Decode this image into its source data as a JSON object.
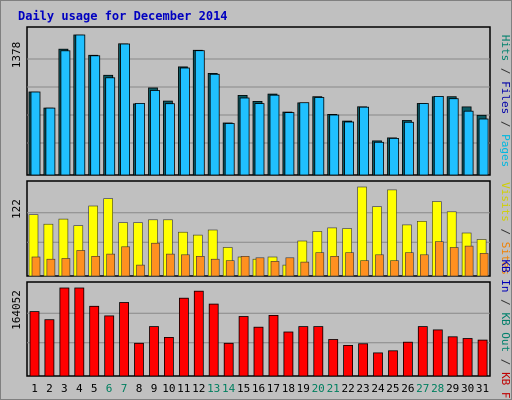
{
  "chart_data": {
    "type": "bar",
    "title": "Daily usage for December 2014",
    "categories": [
      "1",
      "2",
      "3",
      "4",
      "5",
      "6",
      "7",
      "8",
      "9",
      "10",
      "11",
      "12",
      "13",
      "14",
      "15",
      "16",
      "17",
      "18",
      "19",
      "20",
      "21",
      "22",
      "23",
      "24",
      "25",
      "26",
      "27",
      "28",
      "29",
      "30",
      "31"
    ],
    "weekend_days": [
      "6",
      "7",
      "13",
      "14",
      "20",
      "21",
      "27",
      "28"
    ],
    "panels": [
      {
        "name": "top",
        "ymax_label": "1378",
        "ymax": 1378,
        "right_labels": [
          {
            "text": "Hits",
            "color": "#00806c"
          },
          {
            "text": " / ",
            "color": "#333333"
          },
          {
            "text": "Files",
            "color": "#0000a8"
          },
          {
            "text": " / ",
            "color": "#333333"
          },
          {
            "text": "Pages",
            "color": "#00b8e0"
          }
        ],
        "series": [
          {
            "name": "Hits",
            "color": "#0a5a64",
            "values": [
              817,
              658,
              1238,
              1378,
              1178,
              981,
              1291,
              700,
              856,
              727,
              1064,
              1227,
              1000,
              512,
              783,
              724,
              796,
              619,
              710,
              771,
              596,
              531,
              671,
              336,
              365,
              536,
              704,
              770,
              771,
              670,
              588
            ]
          },
          {
            "name": "Files",
            "color": "#20c0ff",
            "values": [
              817,
              658,
              1222,
              1378,
              1173,
              957,
              1289,
              705,
              832,
              702,
              1053,
              1223,
              991,
              507,
              758,
              703,
              785,
              614,
              712,
              763,
              591,
              522,
              667,
              322,
              360,
              519,
              704,
              774,
              751,
              628,
              551
            ]
          },
          {
            "name": "Pages",
            "color": "#00b8e0",
            "values": [
              80,
              60,
              120,
              140,
              110,
              90,
              130,
              70,
              80,
              70,
              100,
              120,
              100,
              50,
              75,
              70,
              80,
              60,
              70,
              75,
              60,
              50,
              65,
              30,
              35,
              50,
              70,
              75,
              75,
              65,
              55
            ]
          }
        ]
      },
      {
        "name": "middle",
        "ymax_label": "122",
        "ymax": 122,
        "right_labels": [
          {
            "text": "Visits",
            "color": "#d0d000"
          },
          {
            "text": " / ",
            "color": "#333333"
          },
          {
            "text": "Sites",
            "color": "#f08000"
          }
        ],
        "series": [
          {
            "name": "Visits",
            "color": "#ffff00",
            "values": [
              84,
              71,
              78,
              69,
              96,
              106,
              73,
              73,
              77,
              77,
              60,
              56,
              63,
              39,
              26,
              23,
              26,
              15,
              48,
              61,
              66,
              65,
              122,
              95,
              118,
              70,
              75,
              102,
              88,
              59,
              50
            ]
          },
          {
            "name": "Sites",
            "color": "#ff9020",
            "values": [
              26,
              23,
              24,
              35,
              27,
              30,
              40,
              15,
              45,
              30,
              29,
              27,
              23,
              21,
              27,
              25,
              20,
              25,
              19,
              32,
              27,
              32,
              21,
              29,
              21,
              32,
              29,
              47,
              39,
              41,
              31
            ]
          }
        ]
      },
      {
        "name": "bottom",
        "ymax_label": "164052",
        "ymax": 164052,
        "right_labels": [
          {
            "text": "KB In",
            "color": "#0000b8"
          },
          {
            "text": " / ",
            "color": "#333333"
          },
          {
            "text": "KB Out",
            "color": "#00806c"
          },
          {
            "text": " / ",
            "color": "#333333"
          },
          {
            "text": "KB F",
            "color": "#c00000"
          }
        ],
        "series": [
          {
            "name": "KB F",
            "color": "#ff0000",
            "values": [
              120000,
              105000,
              164052,
              164052,
              130000,
              112000,
              137000,
              61000,
              92000,
              72000,
              145000,
              158000,
              134000,
              61000,
              111000,
              91000,
              113000,
              82000,
              92000,
              92000,
              68000,
              57000,
              60000,
              43000,
              47000,
              63000,
              92000,
              86000,
              73000,
              70000,
              67000
            ]
          }
        ]
      }
    ]
  }
}
